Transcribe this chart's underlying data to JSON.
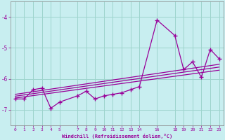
{
  "xlabel": "Windchill (Refroidissement éolien,°C)",
  "background_color": "#c8eef0",
  "grid_color": "#9dd4cc",
  "line_color": "#990099",
  "x_ticks": [
    0,
    1,
    2,
    3,
    4,
    5,
    7,
    8,
    9,
    10,
    11,
    12,
    13,
    14,
    16,
    18,
    19,
    20,
    21,
    22,
    23
  ],
  "ylim": [
    -7.5,
    -3.5
  ],
  "xlim": [
    -0.5,
    23.5
  ],
  "y_ticks": [
    -7,
    -6,
    -5,
    -4
  ],
  "main_x": [
    0,
    1,
    2,
    3,
    4,
    5,
    7,
    8,
    9,
    10,
    11,
    12,
    13,
    14,
    16,
    18,
    19,
    20,
    21,
    22,
    23
  ],
  "main_y": [
    -6.65,
    -6.65,
    -6.35,
    -6.3,
    -6.95,
    -6.75,
    -6.55,
    -6.4,
    -6.65,
    -6.55,
    -6.5,
    -6.45,
    -6.35,
    -6.25,
    -4.1,
    -4.6,
    -5.7,
    -5.45,
    -5.95,
    -5.05,
    -5.35
  ],
  "trend1_x": [
    0,
    23
  ],
  "trend1_y": [
    -6.62,
    -5.72
  ],
  "trend2_x": [
    0,
    23
  ],
  "trend2_y": [
    -6.56,
    -5.62
  ],
  "trend3_x": [
    0,
    23
  ],
  "trend3_y": [
    -6.5,
    -5.53
  ]
}
